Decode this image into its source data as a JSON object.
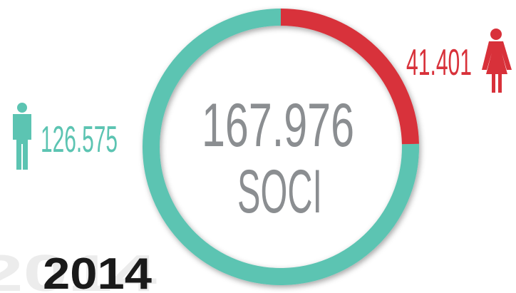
{
  "chart_data": {
    "type": "pie",
    "values": [
      126575,
      41401
    ],
    "value_labels": [
      "126.575",
      "41.401"
    ],
    "colors": [
      "#5cc4b2",
      "#d8313a"
    ],
    "center_label": "167.976",
    "center_sublabel": "SOCI",
    "year": "2014"
  }
}
